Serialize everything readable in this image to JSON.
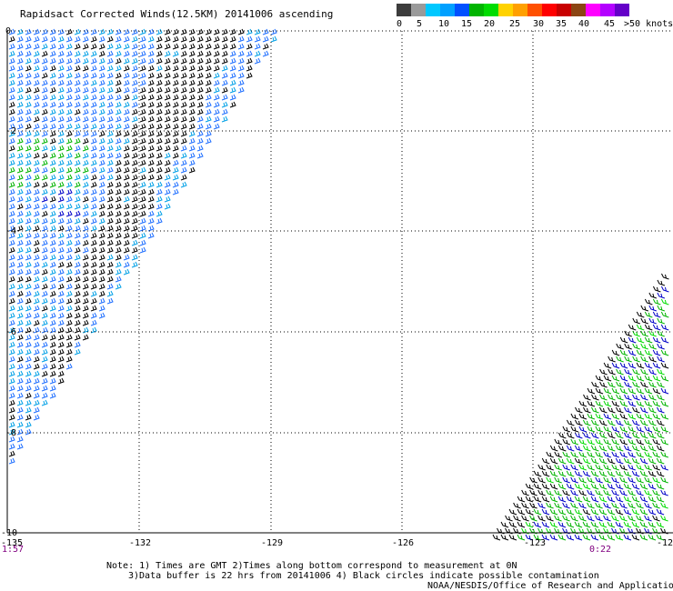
{
  "title": "Rapidsact Corrected Winds(12.5KM) 20141006 ascending",
  "colorbar": {
    "colors": [
      "#3c3c3c",
      "#9a9a9a",
      "#00c8ff",
      "#00a0ff",
      "#0050ff",
      "#00b400",
      "#00dc00",
      "#ffd200",
      "#ffa000",
      "#ff5000",
      "#ff0000",
      "#c80000",
      "#8b4513",
      "#ff00ff",
      "#b400ff",
      "#6400c8"
    ],
    "labels": [
      "0",
      "5",
      "10",
      "15",
      "20",
      "25",
      "30",
      "35",
      "40",
      "45",
      ">50 knots"
    ]
  },
  "axes": {
    "lat_ticks": [
      "0",
      "-2",
      "-4",
      "-6",
      "-8",
      "-10"
    ],
    "lon_ticks": [
      "-135",
      "-132",
      "-129",
      "-126",
      "-123",
      "-12"
    ]
  },
  "times": {
    "left": "1:57",
    "right": "0:22"
  },
  "notes": {
    "line1": "Note: 1) Times are GMT 2)Times along bottom correspond to measurement at 0N",
    "line2": "3)Data buffer is 22 hrs from 20141006 4) Black circles indicate possible contamination",
    "credit": "NOAA/NESDIS/Office of Research and Applications"
  }
}
